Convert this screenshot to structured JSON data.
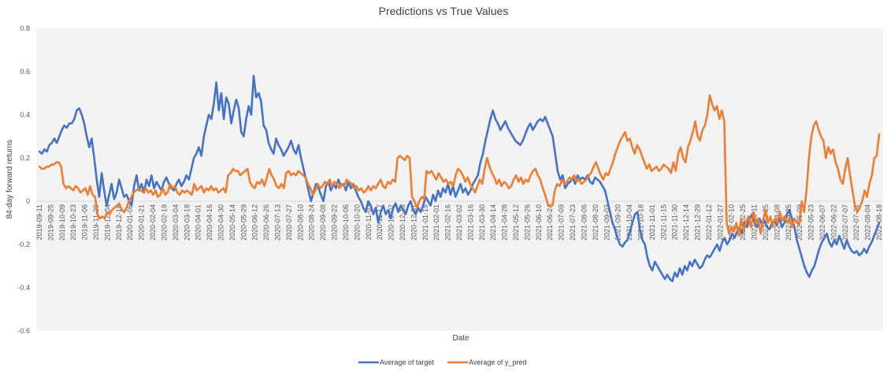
{
  "chart_data": {
    "type": "line",
    "title": "Predictions vs True Values",
    "xlabel": "Date",
    "ylabel": "84-day forward returns",
    "ylim": [
      -0.6,
      0.8
    ],
    "yticks": [
      "0.8",
      "0.6",
      "0.4",
      "0.2",
      "0",
      "-0.2",
      "-0.4",
      "-0.6"
    ],
    "x_tick_labels": [
      "2019-09-11",
      "2019-09-25",
      "2019-10-09",
      "2019-10-23",
      "2019-11-06",
      "2019-11-20",
      "2019-12-04",
      "2019-12-18",
      "2020-01-06",
      "2020-01-21",
      "2020-02-04",
      "2020-02-19",
      "2020-03-04",
      "2020-03-18",
      "2020-04-01",
      "2020-04-16",
      "2020-04-30",
      "2020-05-14",
      "2020-05-29",
      "2020-06-12",
      "2020-06-26",
      "2020-07-13",
      "2020-07-27",
      "2020-08-10",
      "2020-08-24",
      "2020-09-08",
      "2020-09-22",
      "2020-10-06",
      "2020-10-20",
      "2020-11-03",
      "2020-11-17",
      "2020-12-02",
      "2020-12-16",
      "2020-12-31",
      "2021-01-15",
      "2021-02-01",
      "2021-02-16",
      "2021-03-02",
      "2021-03-16",
      "2021-03-30",
      "2021-04-14",
      "2021-04-28",
      "2021-05-12",
      "2021-05-26",
      "2021-06-10",
      "2021-06-24",
      "2021-07-09",
      "2021-07-23",
      "2021-08-06",
      "2021-08-20",
      "2021-09-03",
      "2021-09-20",
      "2021-10-04",
      "2021-10-18",
      "2021-11-01",
      "2021-11-15",
      "2021-11-30",
      "2021-12-14",
      "2021-12-29",
      "2022-01-12",
      "2022-01-27",
      "2022-02-10",
      "2022-02-25",
      "2022-03-11",
      "2022-03-25",
      "2022-04-08",
      "2022-04-25",
      "2022-05-09",
      "2022-05-23",
      "2022-06-07",
      "2022-06-22",
      "2022-07-07",
      "2022-07-21",
      "2022-08-04",
      "2022-08-18"
    ],
    "grid": false,
    "legend_position": "bottom",
    "series": [
      {
        "name": "Average of target",
        "color": "#4472C4",
        "values": [
          0.23,
          0.22,
          0.24,
          0.23,
          0.26,
          0.27,
          0.29,
          0.27,
          0.3,
          0.33,
          0.35,
          0.34,
          0.36,
          0.36,
          0.38,
          0.42,
          0.43,
          0.4,
          0.36,
          0.3,
          0.25,
          0.29,
          0.2,
          0.1,
          0.02,
          0.13,
          0.05,
          -0.02,
          0.03,
          0.08,
          0.01,
          0.04,
          0.1,
          0.06,
          0.02,
          0.03,
          0.0,
          -0.02,
          0.07,
          0.12,
          0.05,
          0.08,
          0.04,
          0.1,
          0.07,
          0.12,
          0.06,
          0.09,
          0.07,
          0.05,
          0.09,
          0.11,
          0.08,
          0.06,
          0.05,
          0.08,
          0.1,
          0.07,
          0.09,
          0.12,
          0.1,
          0.15,
          0.2,
          0.22,
          0.25,
          0.21,
          0.3,
          0.35,
          0.4,
          0.38,
          0.45,
          0.55,
          0.42,
          0.5,
          0.38,
          0.48,
          0.45,
          0.36,
          0.42,
          0.47,
          0.43,
          0.32,
          0.3,
          0.38,
          0.44,
          0.4,
          0.58,
          0.48,
          0.5,
          0.46,
          0.35,
          0.33,
          0.27,
          0.24,
          0.22,
          0.29,
          0.26,
          0.24,
          0.21,
          0.23,
          0.25,
          0.28,
          0.24,
          0.22,
          0.26,
          0.2,
          0.15,
          0.1,
          0.05,
          0.0,
          0.04,
          0.08,
          0.06,
          0.03,
          0.0,
          0.07,
          0.09,
          0.05,
          0.08,
          0.06,
          0.1,
          0.07,
          0.08,
          0.05,
          0.09,
          0.06,
          0.08,
          0.05,
          0.02,
          0.0,
          -0.03,
          -0.05,
          0.0,
          -0.02,
          -0.06,
          -0.03,
          -0.1,
          -0.05,
          -0.02,
          -0.06,
          -0.04,
          -0.08,
          -0.03,
          -0.01,
          -0.05,
          -0.02,
          -0.04,
          -0.06,
          -0.02,
          0.0,
          -0.04,
          -0.06,
          -0.03,
          -0.05,
          -0.02,
          0.02,
          0.0,
          -0.02,
          0.03,
          0.0,
          0.05,
          0.02,
          0.06,
          0.04,
          0.08,
          0.03,
          0.07,
          0.02,
          0.05,
          0.08,
          0.04,
          0.06,
          0.03,
          0.05,
          0.08,
          0.1,
          0.12,
          0.18,
          0.22,
          0.28,
          0.33,
          0.38,
          0.42,
          0.38,
          0.36,
          0.33,
          0.35,
          0.37,
          0.34,
          0.32,
          0.3,
          0.28,
          0.27,
          0.26,
          0.28,
          0.31,
          0.34,
          0.36,
          0.33,
          0.35,
          0.37,
          0.38,
          0.37,
          0.39,
          0.36,
          0.33,
          0.3,
          0.22,
          0.14,
          0.1,
          0.12,
          0.06,
          0.08,
          0.09,
          0.11,
          0.08,
          0.12,
          0.1,
          0.11,
          0.1,
          0.12,
          0.09,
          0.08,
          0.11,
          0.1,
          0.09,
          0.07,
          0.05,
          0.0,
          -0.05,
          -0.1,
          -0.13,
          -0.17,
          -0.2,
          -0.21,
          -0.19,
          -0.18,
          -0.14,
          -0.1,
          -0.06,
          -0.05,
          -0.13,
          -0.18,
          -0.2,
          -0.26,
          -0.3,
          -0.32,
          -0.28,
          -0.3,
          -0.32,
          -0.34,
          -0.36,
          -0.34,
          -0.36,
          -0.37,
          -0.33,
          -0.35,
          -0.31,
          -0.34,
          -0.3,
          -0.32,
          -0.28,
          -0.3,
          -0.27,
          -0.29,
          -0.31,
          -0.3,
          -0.27,
          -0.25,
          -0.26,
          -0.24,
          -0.22,
          -0.2,
          -0.23,
          -0.19,
          -0.17,
          -0.2,
          -0.18,
          -0.15,
          -0.17,
          -0.14,
          -0.12,
          -0.15,
          -0.1,
          -0.12,
          -0.08,
          -0.06,
          -0.1,
          -0.12,
          -0.08,
          -0.11,
          -0.09,
          -0.12,
          -0.13,
          -0.1,
          -0.09,
          -0.11,
          -0.08,
          -0.12,
          -0.1,
          -0.06,
          -0.04,
          -0.08,
          -0.12,
          -0.18,
          -0.22,
          -0.26,
          -0.3,
          -0.33,
          -0.35,
          -0.32,
          -0.3,
          -0.26,
          -0.22,
          -0.19,
          -0.17,
          -0.15,
          -0.19,
          -0.21,
          -0.18,
          -0.2,
          -0.16,
          -0.19,
          -0.22,
          -0.18,
          -0.21,
          -0.23,
          -0.24,
          -0.23,
          -0.25,
          -0.24,
          -0.22,
          -0.24,
          -0.21,
          -0.19,
          -0.16,
          -0.13,
          -0.1
        ]
      },
      {
        "name": "Average of y_pred",
        "color": "#ED7D31",
        "values": [
          0.16,
          0.15,
          0.15,
          0.16,
          0.16,
          0.17,
          0.17,
          0.18,
          0.18,
          0.16,
          0.08,
          0.06,
          0.07,
          0.06,
          0.05,
          0.07,
          0.06,
          0.04,
          0.05,
          0.06,
          0.03,
          0.07,
          0.03,
          0.02,
          -0.06,
          -0.08,
          -0.07,
          -0.08,
          -0.05,
          -0.06,
          -0.04,
          -0.03,
          -0.02,
          -0.01,
          -0.04,
          -0.05,
          -0.03,
          0.0,
          0.02,
          0.04,
          0.05,
          0.06,
          0.05,
          0.04,
          0.06,
          0.04,
          0.05,
          0.03,
          0.05,
          0.02,
          0.03,
          0.06,
          0.03,
          0.04,
          0.08,
          0.06,
          0.07,
          0.04,
          0.03,
          0.05,
          0.04,
          0.05,
          0.04,
          0.03,
          0.08,
          0.05,
          0.06,
          0.07,
          0.04,
          0.06,
          0.05,
          0.07,
          0.05,
          0.06,
          0.04,
          0.05,
          0.06,
          0.04,
          0.12,
          0.13,
          0.15,
          0.14,
          0.14,
          0.12,
          0.13,
          0.14,
          0.15,
          0.09,
          0.07,
          0.06,
          0.09,
          0.08,
          0.1,
          0.07,
          0.11,
          0.15,
          0.12,
          0.1,
          0.07,
          0.06,
          0.08,
          0.06,
          0.13,
          0.14,
          0.12,
          0.13,
          0.12,
          0.14,
          0.13,
          0.12,
          0.11,
          0.08,
          0.06,
          0.03,
          0.05,
          0.08,
          0.06,
          0.07,
          0.09,
          0.08,
          0.1,
          0.07,
          0.09,
          0.08,
          0.06,
          0.08,
          0.07,
          0.1,
          0.09,
          0.08,
          0.06,
          0.07,
          0.05,
          0.06,
          0.04,
          0.05,
          0.07,
          0.05,
          0.07,
          0.06,
          0.08,
          0.1,
          0.07,
          0.06,
          0.09,
          0.08,
          0.1,
          0.09,
          0.2,
          0.21,
          0.2,
          0.19,
          0.21,
          0.2,
          0.02,
          0.0,
          -0.03,
          0.0,
          0.02,
          0.01,
          0.14,
          0.13,
          0.14,
          0.12,
          0.1,
          0.13,
          0.11,
          0.09,
          0.1,
          0.08,
          0.09,
          0.07,
          0.12,
          0.15,
          0.14,
          0.12,
          0.09,
          0.11,
          0.08,
          0.06,
          0.04,
          0.07,
          0.1,
          0.08,
          0.15,
          0.2,
          0.16,
          0.13,
          0.11,
          0.08,
          0.1,
          0.07,
          0.09,
          0.08,
          0.06,
          0.07,
          0.1,
          0.12,
          0.09,
          0.11,
          0.08,
          0.1,
          0.09,
          0.12,
          0.14,
          0.15,
          0.12,
          0.1,
          0.06,
          0.03,
          -0.01,
          -0.02,
          -0.02,
          0.05,
          0.08,
          0.07,
          0.1,
          0.08,
          0.09,
          0.11,
          0.1,
          0.12,
          0.09,
          0.1,
          0.08,
          0.09,
          0.1,
          0.12,
          0.13,
          0.16,
          0.18,
          0.15,
          0.12,
          0.1,
          0.13,
          0.12,
          0.15,
          0.18,
          0.22,
          0.25,
          0.28,
          0.3,
          0.32,
          0.28,
          0.29,
          0.25,
          0.22,
          0.26,
          0.24,
          0.21,
          0.18,
          0.15,
          0.17,
          0.14,
          0.15,
          0.16,
          0.14,
          0.15,
          0.17,
          0.16,
          0.15,
          0.13,
          0.18,
          0.14,
          0.22,
          0.25,
          0.2,
          0.18,
          0.25,
          0.28,
          0.32,
          0.37,
          0.3,
          0.28,
          0.33,
          0.35,
          0.4,
          0.49,
          0.45,
          0.42,
          0.44,
          0.38,
          0.42,
          0.37,
          -0.1,
          -0.15,
          -0.12,
          -0.14,
          -0.1,
          -0.16,
          -0.08,
          -0.14,
          -0.1,
          -0.07,
          -0.12,
          -0.05,
          -0.1,
          -0.08,
          -0.15,
          -0.09,
          -0.04,
          -0.1,
          -0.07,
          -0.12,
          -0.08,
          -0.1,
          -0.05,
          -0.09,
          -0.07,
          -0.1,
          -0.08,
          -0.12,
          -0.08,
          -0.1,
          -0.11,
          0.0,
          -0.05,
          0.05,
          0.2,
          0.3,
          0.35,
          0.37,
          0.33,
          0.3,
          0.28,
          0.2,
          0.25,
          0.22,
          0.24,
          0.18,
          0.15,
          0.1,
          0.08,
          0.15,
          0.2,
          0.12,
          0.05,
          -0.02,
          -0.05,
          -0.03,
          0.0,
          0.05,
          0.02,
          0.08,
          0.12,
          0.2,
          0.21,
          0.31
        ]
      }
    ]
  }
}
